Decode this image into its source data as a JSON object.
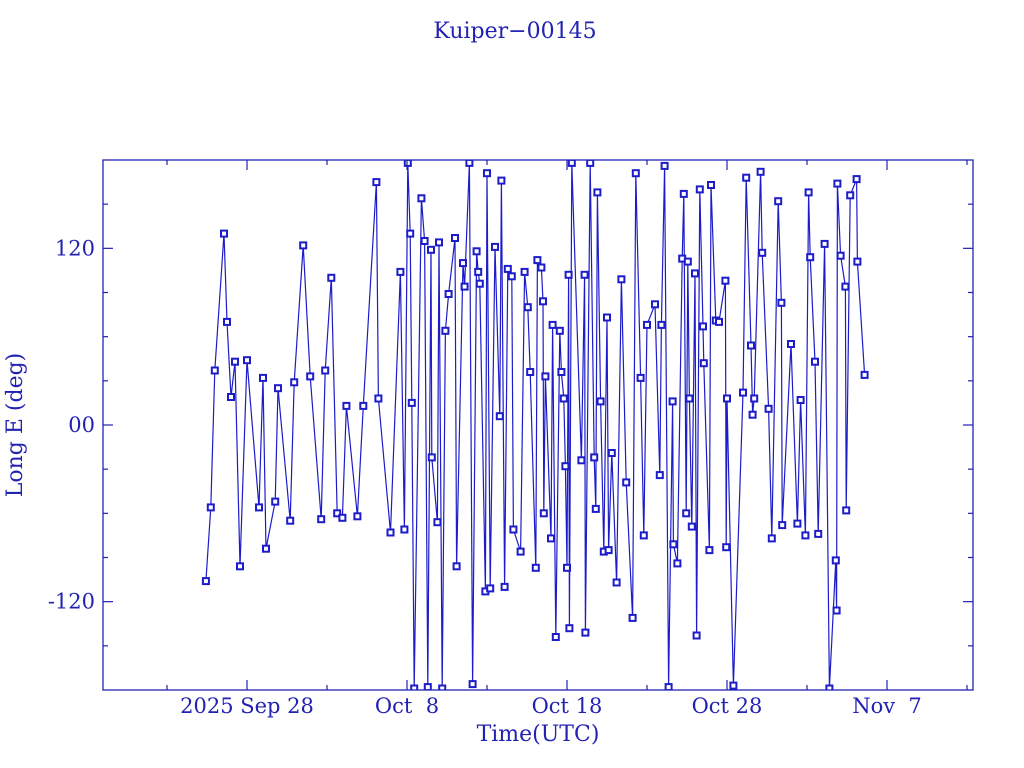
{
  "title": "Kuiper−00145",
  "colors": {
    "foreground": "#2222b2",
    "data_line": "#1c1cc8",
    "background": "#ffffff"
  },
  "chart_data": {
    "type": "line",
    "title": "Kuiper−00145",
    "xlabel": "Time(UTC)",
    "ylabel": "Long E (deg)",
    "marker": "open-square",
    "grid": false,
    "x_unit": "days since 2025 Sep 28 00:00 UTC",
    "xlim_days": [
      -9,
      45.4
    ],
    "ylim": [
      -180,
      180
    ],
    "y_major_ticks": [
      {
        "v": 120,
        "label": "120"
      },
      {
        "v": 0,
        "label": "00"
      },
      {
        "v": -120,
        "label": "-120"
      }
    ],
    "y_minor_step_deg": 30,
    "x_major_ticks": [
      {
        "day": 0,
        "label": "2025 Sep 28"
      },
      {
        "day": 10,
        "label": "Oct  8"
      },
      {
        "day": 20,
        "label": "Oct 18"
      },
      {
        "day": 30,
        "label": "Oct 28"
      },
      {
        "day": 40,
        "label": "Nov  7"
      }
    ],
    "x_minor_tick_days": [
      -5,
      5,
      15,
      25,
      35,
      45
    ],
    "points": [
      [
        -2.57,
        -106
      ],
      [
        -2.26,
        -56
      ],
      [
        -2.01,
        37
      ],
      [
        -1.44,
        130
      ],
      [
        -1.25,
        70
      ],
      [
        -1.0,
        19
      ],
      [
        -0.75,
        43
      ],
      [
        -0.44,
        -96
      ],
      [
        0.0,
        44
      ],
      [
        0.75,
        -56
      ],
      [
        1.0,
        32
      ],
      [
        1.19,
        -84
      ],
      [
        1.76,
        -52
      ],
      [
        1.94,
        25
      ],
      [
        2.7,
        -65
      ],
      [
        2.95,
        29
      ],
      [
        3.51,
        122
      ],
      [
        3.95,
        33
      ],
      [
        4.64,
        -64
      ],
      [
        4.89,
        37
      ],
      [
        5.27,
        100
      ],
      [
        5.64,
        -60
      ],
      [
        5.96,
        -63
      ],
      [
        6.21,
        13
      ],
      [
        6.9,
        -62
      ],
      [
        7.27,
        13
      ],
      [
        8.09,
        165
      ],
      [
        8.21,
        18
      ],
      [
        8.97,
        -73
      ],
      [
        9.59,
        104
      ],
      [
        9.84,
        -71
      ],
      [
        10.05,
        178
      ],
      [
        10.2,
        130
      ],
      [
        10.3,
        15
      ],
      [
        10.45,
        -179
      ],
      [
        10.9,
        154
      ],
      [
        11.1,
        125
      ],
      [
        11.3,
        -178
      ],
      [
        11.5,
        119
      ],
      [
        11.55,
        -22
      ],
      [
        11.9,
        -66
      ],
      [
        12.0,
        124
      ],
      [
        12.2,
        -179
      ],
      [
        12.4,
        64
      ],
      [
        12.6,
        89
      ],
      [
        13.0,
        127
      ],
      [
        13.1,
        -96
      ],
      [
        13.5,
        110
      ],
      [
        13.6,
        94
      ],
      [
        13.9,
        178
      ],
      [
        14.1,
        -176
      ],
      [
        14.35,
        118
      ],
      [
        14.45,
        104
      ],
      [
        14.55,
        96
      ],
      [
        14.9,
        -113
      ],
      [
        15.0,
        171
      ],
      [
        15.2,
        -111
      ],
      [
        15.5,
        121
      ],
      [
        15.8,
        6
      ],
      [
        15.9,
        166
      ],
      [
        16.1,
        -110
      ],
      [
        16.3,
        106
      ],
      [
        16.55,
        101
      ],
      [
        16.65,
        -71
      ],
      [
        17.1,
        -86
      ],
      [
        17.35,
        104
      ],
      [
        17.55,
        80
      ],
      [
        17.7,
        36
      ],
      [
        18.05,
        -97
      ],
      [
        18.15,
        112
      ],
      [
        18.4,
        107
      ],
      [
        18.5,
        84
      ],
      [
        18.55,
        -60
      ],
      [
        18.65,
        33
      ],
      [
        19.0,
        -77
      ],
      [
        19.1,
        68
      ],
      [
        19.3,
        -144
      ],
      [
        19.55,
        64
      ],
      [
        19.65,
        36
      ],
      [
        19.8,
        18
      ],
      [
        19.9,
        -28
      ],
      [
        20.0,
        -97
      ],
      [
        20.1,
        102
      ],
      [
        20.15,
        -138
      ],
      [
        20.3,
        178
      ],
      [
        20.9,
        -24
      ],
      [
        21.1,
        102
      ],
      [
        21.15,
        -141
      ],
      [
        21.45,
        178
      ],
      [
        21.7,
        -22
      ],
      [
        21.8,
        -57
      ],
      [
        21.9,
        158
      ],
      [
        22.1,
        16
      ],
      [
        22.3,
        -86
      ],
      [
        22.5,
        73
      ],
      [
        22.6,
        -85
      ],
      [
        22.8,
        -19
      ],
      [
        23.1,
        -107
      ],
      [
        23.4,
        99
      ],
      [
        23.7,
        -39
      ],
      [
        24.1,
        -131
      ],
      [
        24.3,
        171
      ],
      [
        24.6,
        32
      ],
      [
        24.8,
        -75
      ],
      [
        25.0,
        68
      ],
      [
        25.5,
        82
      ],
      [
        25.8,
        -34
      ],
      [
        25.9,
        68
      ],
      [
        26.1,
        176
      ],
      [
        26.35,
        -178
      ],
      [
        26.6,
        16
      ],
      [
        26.65,
        -81
      ],
      [
        26.9,
        -94
      ],
      [
        27.2,
        113
      ],
      [
        27.3,
        157
      ],
      [
        27.45,
        -60
      ],
      [
        27.55,
        111
      ],
      [
        27.65,
        18
      ],
      [
        27.8,
        -69
      ],
      [
        28.0,
        103
      ],
      [
        28.1,
        -143
      ],
      [
        28.3,
        160
      ],
      [
        28.5,
        67
      ],
      [
        28.55,
        42
      ],
      [
        28.9,
        -85
      ],
      [
        29.0,
        163
      ],
      [
        29.3,
        71
      ],
      [
        29.5,
        70
      ],
      [
        29.9,
        98
      ],
      [
        29.95,
        -83
      ],
      [
        30.0,
        18
      ],
      [
        30.4,
        -177
      ],
      [
        31.0,
        22
      ],
      [
        31.2,
        168
      ],
      [
        31.5,
        54
      ],
      [
        31.6,
        7
      ],
      [
        31.7,
        18
      ],
      [
        32.1,
        172
      ],
      [
        32.2,
        117
      ],
      [
        32.6,
        11
      ],
      [
        32.8,
        -77
      ],
      [
        33.2,
        152
      ],
      [
        33.4,
        83
      ],
      [
        33.45,
        -68
      ],
      [
        34.0,
        55
      ],
      [
        34.4,
        -67
      ],
      [
        34.6,
        17
      ],
      [
        34.9,
        -75
      ],
      [
        35.1,
        158
      ],
      [
        35.2,
        114
      ],
      [
        35.5,
        43
      ],
      [
        35.7,
        -74
      ],
      [
        36.1,
        123
      ],
      [
        36.4,
        -179
      ],
      [
        36.8,
        -92
      ],
      [
        36.85,
        -126
      ],
      [
        36.9,
        164
      ],
      [
        37.1,
        115
      ],
      [
        37.4,
        94
      ],
      [
        37.45,
        -58
      ],
      [
        37.7,
        156
      ],
      [
        38.1,
        167
      ],
      [
        38.15,
        111
      ],
      [
        38.6,
        34
      ]
    ]
  }
}
